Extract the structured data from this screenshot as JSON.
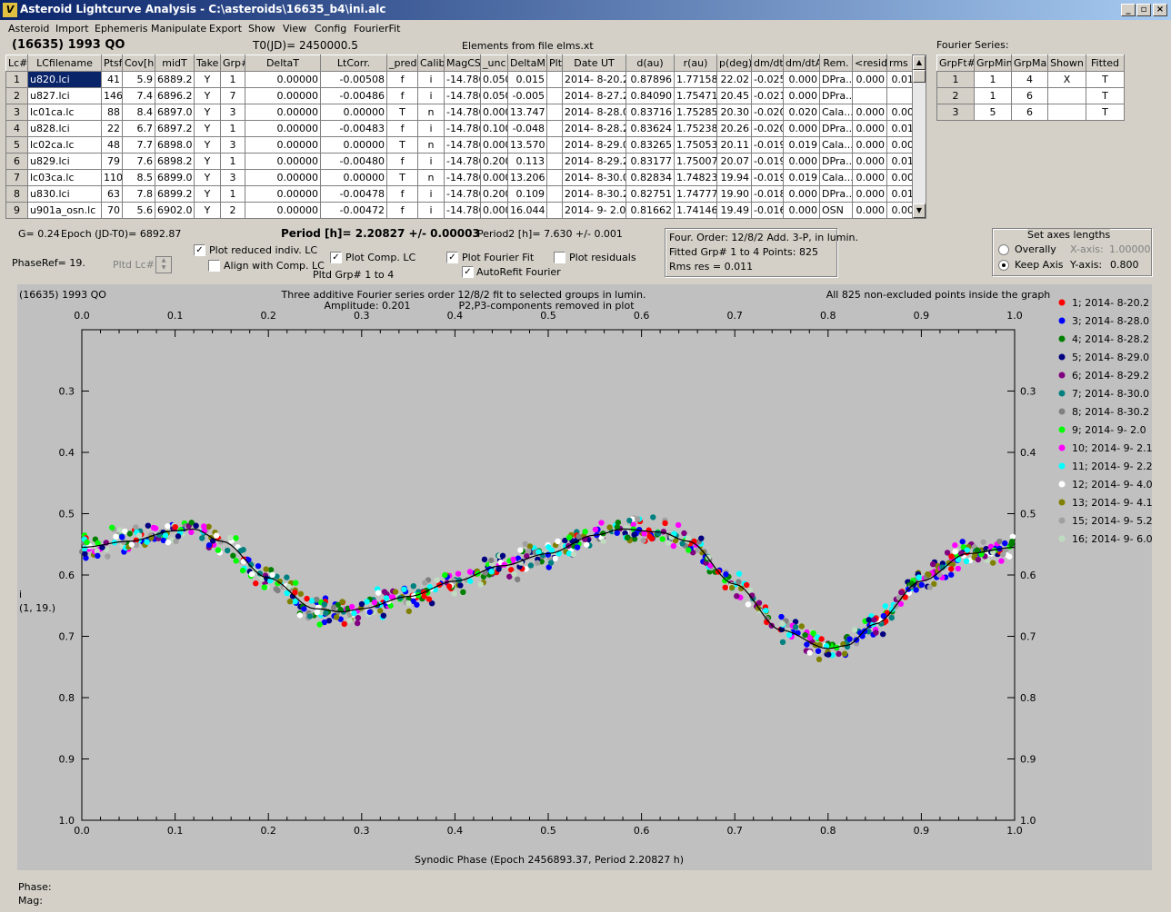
{
  "window": {
    "title": "Asteroid Lightcurve Analysis - C:\\asteroids\\16635_b4\\ini.alc",
    "icon": "app-icon",
    "min": "_",
    "max": "▫",
    "close": "×"
  },
  "menu": [
    "Asteroid",
    "Import",
    "Ephemeris",
    "Manipulate",
    "Export",
    "Show",
    "View",
    "Config",
    "FourierFit"
  ],
  "header": {
    "object": "(16635) 1993 QO",
    "t0": "T0(JD)= 2450000.5",
    "elements": "Elements from file elms.xt"
  },
  "lc_table": {
    "columns": [
      "Lc#",
      "LCfilename",
      "Ptsf",
      "Cov[h]",
      "midT",
      "Take",
      "Grp#",
      "DeltaT",
      "LtCorr.",
      "_pred.",
      "Calib.",
      "MagCS",
      "_unc",
      "DeltaM",
      "Plt",
      "Date UT",
      "d(au)",
      "r(au)",
      "p(deg)",
      "dm/dt",
      "dm/dtA",
      "Rem.",
      "<resid>",
      "rms res"
    ],
    "rows": [
      [
        "1",
        "u820.lci",
        "41",
        "5.9",
        "6889.2",
        "Y",
        "1",
        "0.00000",
        "-0.00508",
        "f",
        "i",
        "-14.780",
        "0.050",
        "0.015",
        "",
        "2014- 8-20.2",
        "0.87896",
        "1.77158",
        "22.02",
        "-0.025",
        "0.000",
        "DPra...",
        "0.000",
        "0.010"
      ],
      [
        "2",
        "u827.lci",
        "146",
        "7.4",
        "6896.2",
        "Y",
        "7",
        "0.00000",
        "-0.00486",
        "f",
        "i",
        "-14.780",
        "0.050",
        "-0.005",
        "",
        "2014- 8-27.2",
        "0.84090",
        "1.75471",
        "20.45",
        "-0.021",
        "0.000",
        "DPra...",
        "",
        ""
      ],
      [
        "3",
        "lc01ca.lc",
        "88",
        "8.4",
        "6897.0",
        "Y",
        "3",
        "0.00000",
        "0.00000",
        "T",
        "n",
        "-14.780",
        "0.000",
        "13.747",
        "",
        "2014- 8-28.0",
        "0.83716",
        "1.75285",
        "20.30",
        "-0.020",
        "0.020",
        "Cala...",
        "0.000",
        "0.007"
      ],
      [
        "4",
        "u828.lci",
        "22",
        "6.7",
        "6897.2",
        "Y",
        "1",
        "0.00000",
        "-0.00483",
        "f",
        "i",
        "-14.780",
        "0.100",
        "-0.048",
        "",
        "2014- 8-28.2",
        "0.83624",
        "1.75238",
        "20.26",
        "-0.020",
        "0.000",
        "DPra...",
        "0.000",
        "0.013"
      ],
      [
        "5",
        "lc02ca.lc",
        "48",
        "7.7",
        "6898.0",
        "Y",
        "3",
        "0.00000",
        "0.00000",
        "T",
        "n",
        "-14.780",
        "0.000",
        "13.570",
        "",
        "2014- 8-29.0",
        "0.83265",
        "1.75053",
        "20.11",
        "-0.019",
        "0.019",
        "Cala...",
        "0.000",
        "0.006"
      ],
      [
        "6",
        "u829.lci",
        "79",
        "7.6",
        "6898.2",
        "Y",
        "1",
        "0.00000",
        "-0.00480",
        "f",
        "i",
        "-14.780",
        "0.200",
        "0.113",
        "",
        "2014- 8-29.2",
        "0.83177",
        "1.75007",
        "20.07",
        "-0.019",
        "0.000",
        "DPra...",
        "0.000",
        "0.010"
      ],
      [
        "7",
        "lc03ca.lc",
        "110",
        "8.5",
        "6899.0",
        "Y",
        "3",
        "0.00000",
        "0.00000",
        "T",
        "n",
        "-14.780",
        "0.000",
        "13.206",
        "",
        "2014- 8-30.0",
        "0.82834",
        "1.74823",
        "19.94",
        "-0.019",
        "0.019",
        "Cala...",
        "0.000",
        "0.008"
      ],
      [
        "8",
        "u830.lci",
        "63",
        "7.8",
        "6899.2",
        "Y",
        "1",
        "0.00000",
        "-0.00478",
        "f",
        "i",
        "-14.780",
        "0.200",
        "0.109",
        "",
        "2014- 8-30.2",
        "0.82751",
        "1.74777",
        "19.90",
        "-0.018",
        "0.000",
        "DPra...",
        "0.000",
        "0.012"
      ],
      [
        "9",
        "u901a_osn.lc",
        "70",
        "5.6",
        "6902.0",
        "Y",
        "2",
        "0.00000",
        "-0.00472",
        "f",
        "i",
        "-14.780",
        "0.000",
        "16.044",
        "",
        "2014- 9- 2.0",
        "0.81662",
        "1.74146",
        "19.49",
        "-0.016",
        "0.000",
        "OSN",
        "0.000",
        "0.008"
      ]
    ]
  },
  "fourier_series": {
    "label": "Fourier Series:",
    "columns": [
      "GrpFt#",
      "GrpMin",
      "GrpMax",
      "Shown",
      "Fitted"
    ],
    "rows": [
      [
        "1",
        "1",
        "4",
        "X",
        "T"
      ],
      [
        "2",
        "1",
        "6",
        "",
        "T"
      ],
      [
        "3",
        "5",
        "6",
        "",
        "T"
      ]
    ]
  },
  "controls": {
    "g": "G= 0.24",
    "epoch": "Epoch (JD-T0)= 6892.87",
    "period": "Period [h]= 2.20827 +/- 0.00003",
    "period2": "Period2 [h]= 7.630 +/- 0.001",
    "phaseref": "PhaseRef= 19.",
    "pltd_lc": "Pltd Lc#:",
    "plot_reduced": "Plot reduced indiv. LC",
    "align_comp": "Align with Comp. LC",
    "plot_comp": "Plot Comp. LC",
    "pltd_grp": "Pltd Grp#  1   to   4",
    "plot_fourier": "Plot Fourier Fit",
    "autorefit": "AutoRefit Fourier",
    "plot_resid": "Plot residuals",
    "info1": "Four. Order: 12/8/2  Add. 3-P, in lumin.",
    "info2": "Fitted Grp# 1 to 4     Points: 825",
    "info3": "Rms res      = 0.011",
    "axes_title": "Set axes lengths",
    "overally": "Overally",
    "keep_axis": "Keep Axis",
    "xaxis": "X-axis:",
    "xaxis_val": "1.00000",
    "yaxis": "Y-axis:",
    "yaxis_val": "0.800"
  },
  "chart_text": {
    "corner": "(16635) 1993 QO",
    "t1": "Three additive Fourier series order 12/8/2 fit to selected groups in lumin.",
    "t2": "Amplitude: 0.201",
    "t3": "P2,P3-components removed in plot",
    "t4": "All 825 non-excluded points inside the graph",
    "ylabel1": "i",
    "ylabel2": "(1, 19.)",
    "xlabel": "Synodic Phase (Epoch 2456893.37, Period 2.20827 h)"
  },
  "chart_data": {
    "type": "scatter",
    "xlim": [
      0,
      1
    ],
    "ylim": [
      0.2,
      1.0
    ],
    "y_inverted": true,
    "xticks": [
      "0.0",
      "0.1",
      "0.2",
      "0.3",
      "0.4",
      "0.5",
      "0.6",
      "0.7",
      "0.8",
      "0.9",
      "1.0"
    ],
    "yticks": [
      "0.3",
      "0.4",
      "0.5",
      "0.6",
      "0.7",
      "0.8",
      "0.9",
      "1.0"
    ],
    "fit_curve": {
      "x": [
        0,
        0.05,
        0.1,
        0.12,
        0.15,
        0.2,
        0.25,
        0.28,
        0.3,
        0.35,
        0.4,
        0.45,
        0.5,
        0.55,
        0.58,
        0.62,
        0.65,
        0.7,
        0.75,
        0.8,
        0.82,
        0.85,
        0.9,
        0.95,
        1.0
      ],
      "y": [
        0.555,
        0.545,
        0.528,
        0.525,
        0.545,
        0.605,
        0.655,
        0.66,
        0.655,
        0.635,
        0.61,
        0.585,
        0.565,
        0.535,
        0.525,
        0.53,
        0.545,
        0.615,
        0.69,
        0.72,
        0.715,
        0.68,
        0.61,
        0.565,
        0.555
      ]
    },
    "series": [
      {
        "name": "1; 2014- 8-20.2",
        "color": "#ff0000"
      },
      {
        "name": "3; 2014- 8-28.0",
        "color": "#0000ff"
      },
      {
        "name": "4; 2014- 8-28.2",
        "color": "#008000"
      },
      {
        "name": "5; 2014- 8-29.0",
        "color": "#000080"
      },
      {
        "name": "6; 2014- 8-29.2",
        "color": "#800080"
      },
      {
        "name": "7; 2014- 8-30.0",
        "color": "#008080"
      },
      {
        "name": "8; 2014- 8-30.2",
        "color": "#808080"
      },
      {
        "name": "9; 2014- 9- 2.0",
        "color": "#00ff00"
      },
      {
        "name": "10; 2014- 9- 2.1",
        "color": "#ff00ff"
      },
      {
        "name": "11; 2014- 9- 2.2",
        "color": "#00ffff"
      },
      {
        "name": "12; 2014- 9- 4.0",
        "color": "#ffffff"
      },
      {
        "name": "13; 2014- 9- 4.1",
        "color": "#808000"
      },
      {
        "name": "15; 2014- 9- 5.2",
        "color": "#a0a0a0"
      },
      {
        "name": "16; 2014- 9- 6.0",
        "color": "#c0dcc0"
      }
    ]
  },
  "status": {
    "phase": "Phase:",
    "mag": "Mag:"
  }
}
